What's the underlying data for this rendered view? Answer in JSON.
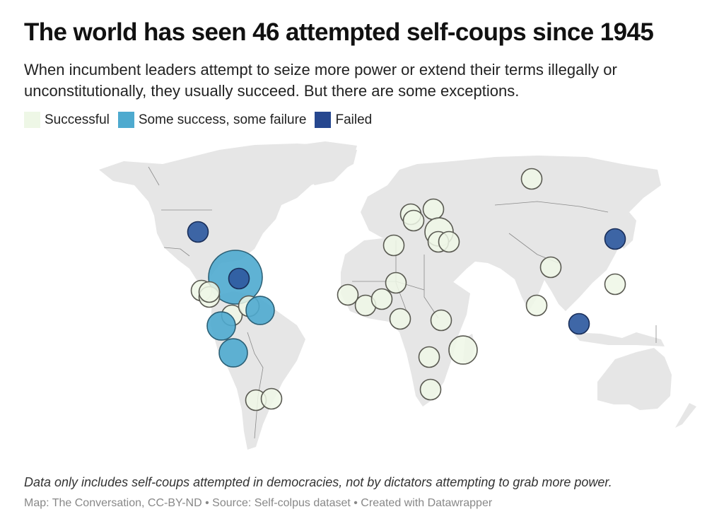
{
  "header": {
    "title": "The world has seen 46 attempted self-coups since 1945",
    "subtitle": "When incumbent leaders attempt to seize more power or extend their terms illegally or unconstitutionally, they usually succeed. But there are some exceptions."
  },
  "legend": [
    {
      "label": "Successful",
      "color": "#eef7e6",
      "key": "successful"
    },
    {
      "label": "Some success, some failure",
      "color": "#4eaacf",
      "key": "mixed"
    },
    {
      "label": "Failed",
      "color": "#26478f",
      "key": "failed"
    }
  ],
  "colors": {
    "successful_fill": "#eef7e6",
    "successful_stroke": "#5a5a52",
    "mixed_fill": "#4eaacf",
    "mixed_stroke": "#2b5f75",
    "failed_fill": "#2f5aa0",
    "failed_stroke": "#1a2f5a",
    "land": "#e6e6e6"
  },
  "chart_data": {
    "type": "proportional-symbol-map",
    "title": "The world has seen 46 attempted self-coups since 1945",
    "total_attempts": 46,
    "legend_placement": "top-left",
    "categories": [
      "Successful",
      "Some success, some failure",
      "Failed"
    ],
    "markers": [
      {
        "region": "United States",
        "status": "failed",
        "relative_size": 1
      },
      {
        "region": "Caribbean / Central America (large)",
        "status": "mixed",
        "relative_size": 3
      },
      {
        "region": "Caribbean / Central America (inner)",
        "status": "failed",
        "relative_size": 1
      },
      {
        "region": "Central America 1",
        "status": "successful",
        "relative_size": 1
      },
      {
        "region": "Central America 2",
        "status": "successful",
        "relative_size": 1
      },
      {
        "region": "Central America 3",
        "status": "successful",
        "relative_size": 1
      },
      {
        "region": "Panama/Colombia",
        "status": "successful",
        "relative_size": 1
      },
      {
        "region": "Colombia/Venezuela",
        "status": "successful",
        "relative_size": 1
      },
      {
        "region": "Venezuela",
        "status": "mixed",
        "relative_size": 1.4
      },
      {
        "region": "Ecuador",
        "status": "mixed",
        "relative_size": 1.4
      },
      {
        "region": "Peru",
        "status": "mixed",
        "relative_size": 1.4
      },
      {
        "region": "Argentina/Chile",
        "status": "successful",
        "relative_size": 1
      },
      {
        "region": "Uruguay",
        "status": "successful",
        "relative_size": 1
      },
      {
        "region": "Central Europe 1",
        "status": "successful",
        "relative_size": 1
      },
      {
        "region": "Central Europe 2",
        "status": "successful",
        "relative_size": 1
      },
      {
        "region": "Eastern Europe",
        "status": "successful",
        "relative_size": 1
      },
      {
        "region": "Balkans / Turkey (large)",
        "status": "successful",
        "relative_size": 1.4
      },
      {
        "region": "Eastern Mediterranean 1",
        "status": "successful",
        "relative_size": 1
      },
      {
        "region": "Eastern Mediterranean 2",
        "status": "successful",
        "relative_size": 1
      },
      {
        "region": "North Africa",
        "status": "successful",
        "relative_size": 1
      },
      {
        "region": "Sahel",
        "status": "successful",
        "relative_size": 1
      },
      {
        "region": "West Africa 1",
        "status": "successful",
        "relative_size": 1
      },
      {
        "region": "West Africa 2",
        "status": "successful",
        "relative_size": 1
      },
      {
        "region": "West Africa 3",
        "status": "successful",
        "relative_size": 1
      },
      {
        "region": "Central Africa",
        "status": "successful",
        "relative_size": 1
      },
      {
        "region": "East Africa",
        "status": "successful",
        "relative_size": 1
      },
      {
        "region": "Madagascar",
        "status": "successful",
        "relative_size": 1.4
      },
      {
        "region": "Southern Africa 1",
        "status": "successful",
        "relative_size": 1
      },
      {
        "region": "Southern Africa 2",
        "status": "successful",
        "relative_size": 1
      },
      {
        "region": "Russia",
        "status": "successful",
        "relative_size": 1
      },
      {
        "region": "South Korea",
        "status": "failed",
        "relative_size": 1
      },
      {
        "region": "Bangladesh",
        "status": "successful",
        "relative_size": 1
      },
      {
        "region": "Sri Lanka",
        "status": "successful",
        "relative_size": 1
      },
      {
        "region": "Philippines",
        "status": "successful",
        "relative_size": 1
      },
      {
        "region": "Indonesia",
        "status": "failed",
        "relative_size": 1
      }
    ]
  },
  "footer": {
    "note": "Data only includes self-coups attempted in democracies, not by dictators attempting to grab more power.",
    "credit": "Map: The Conversation, CC-BY-ND • Source: Self-colpus dataset • Created with Datawrapper"
  }
}
